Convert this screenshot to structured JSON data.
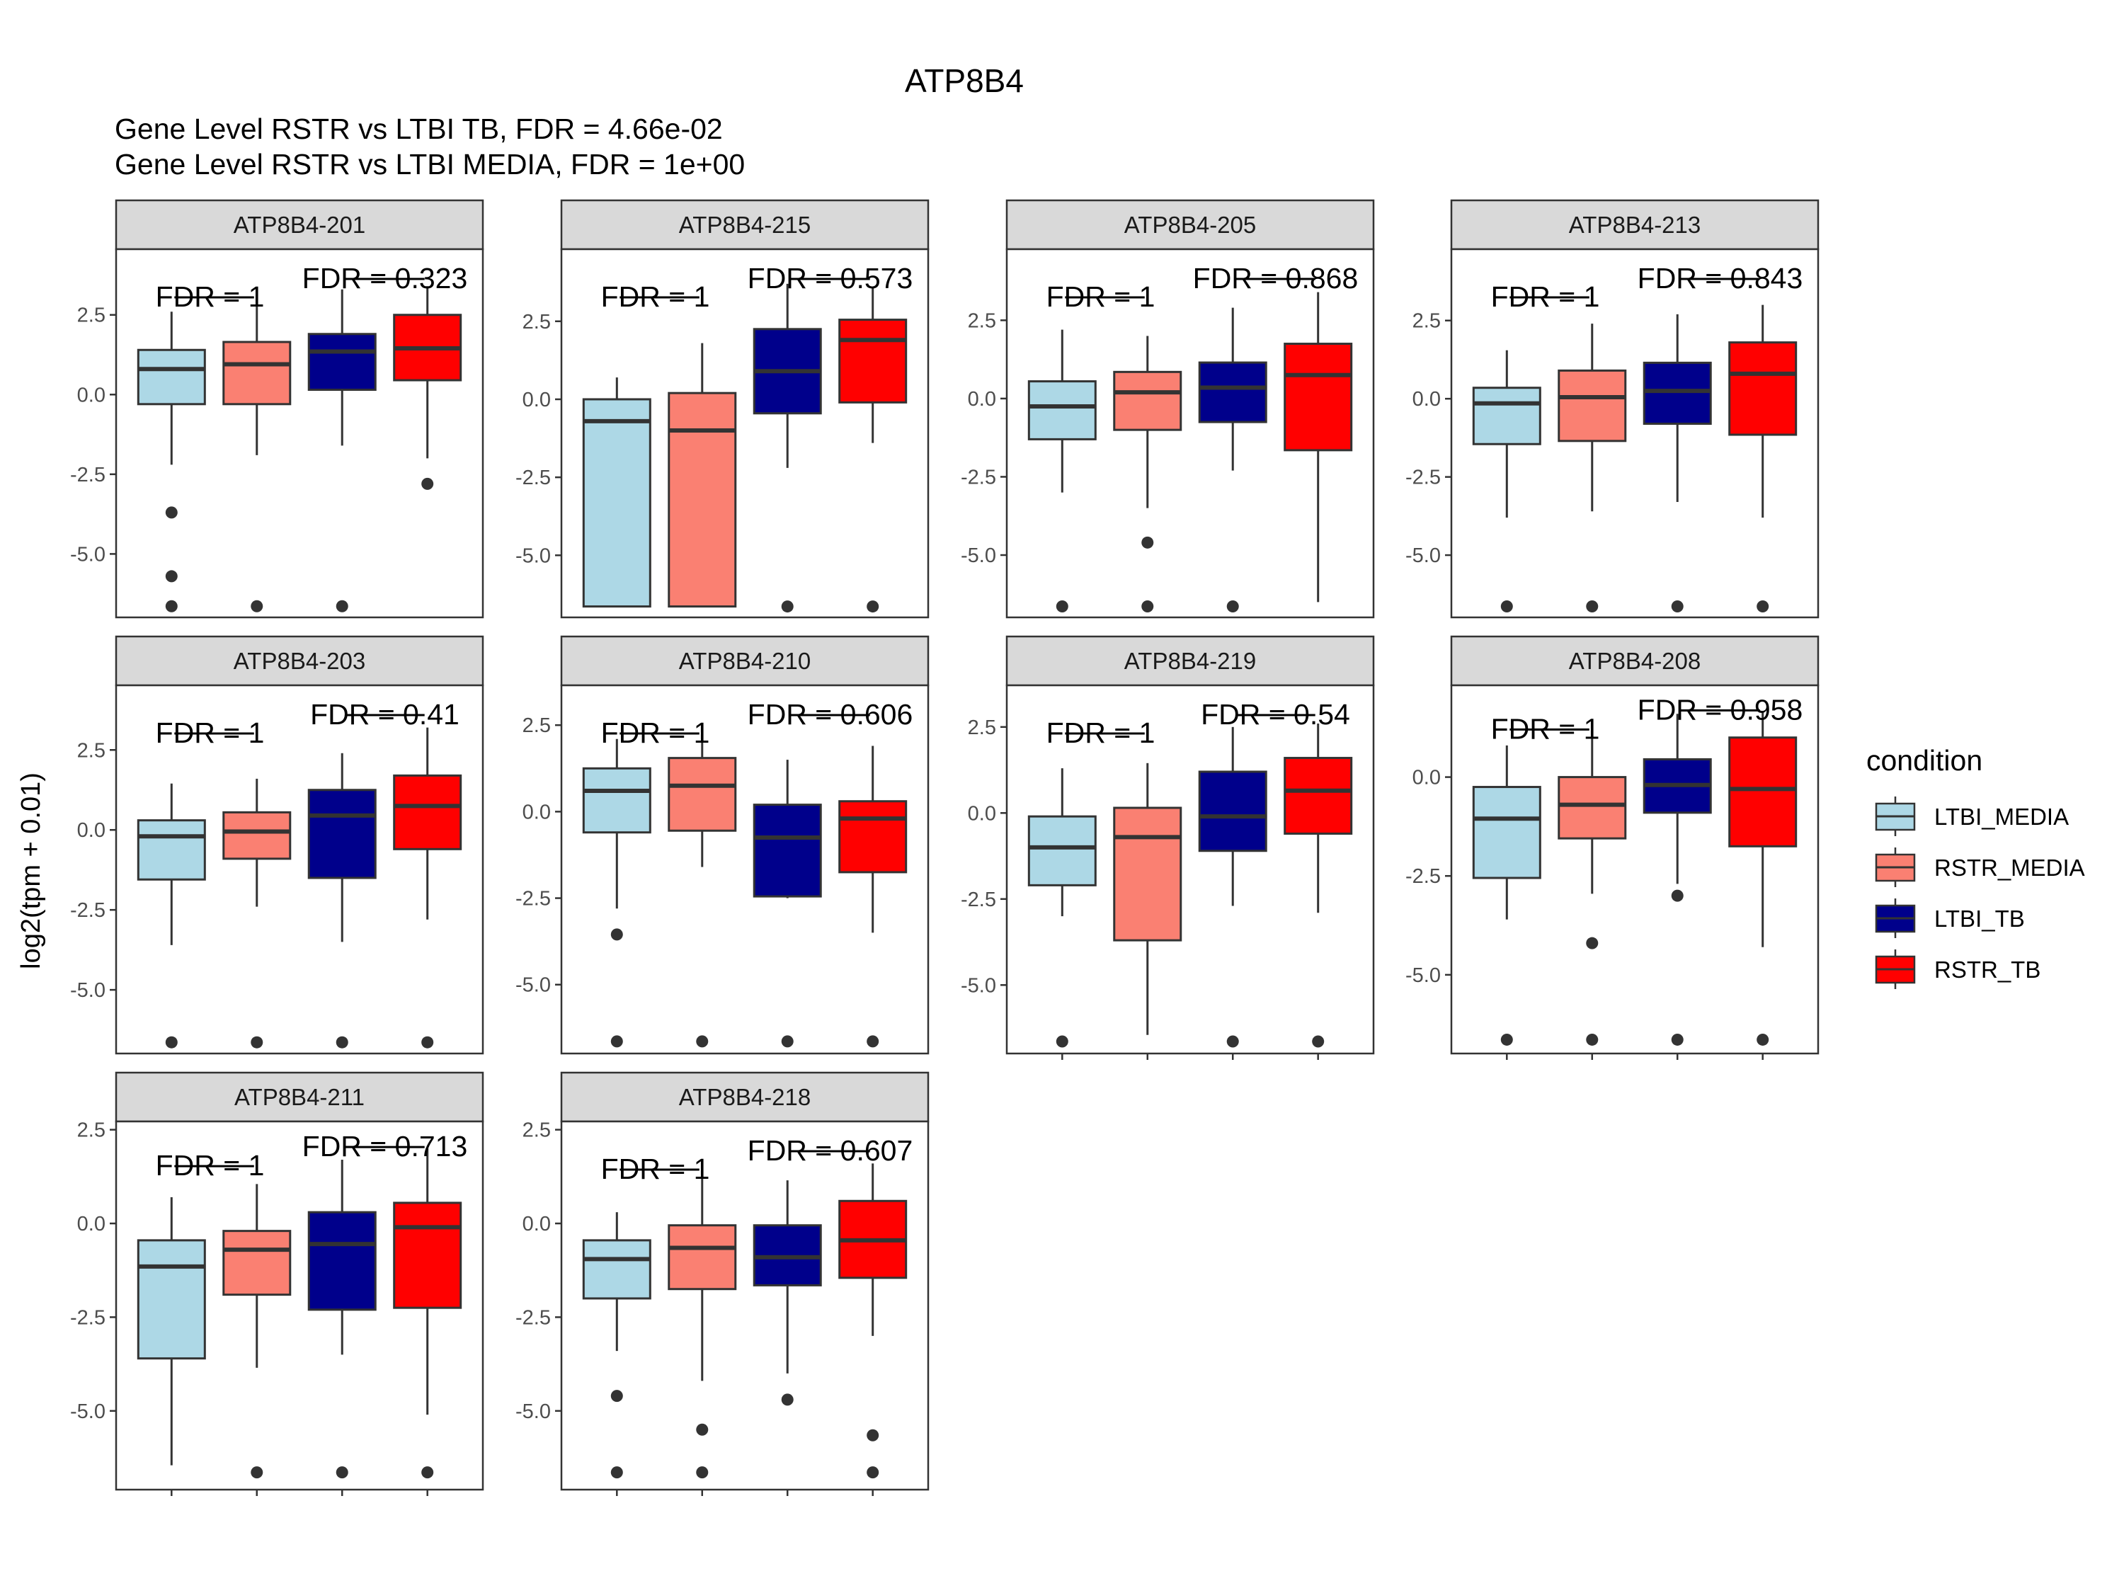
{
  "chart_data": {
    "type": "box",
    "title": "ATP8B4",
    "subtitles": [
      "Gene Level RSTR vs LTBI TB, FDR =  4.66e-02",
      "Gene Level RSTR vs LTBI MEDIA, FDR =  1e+00"
    ],
    "ylabel": "log2(tpm + 0.01)",
    "xlabel": "",
    "grid": false,
    "legend": {
      "title": "condition",
      "position": "right",
      "items": [
        {
          "label": "LTBI_MEDIA",
          "color": "#ADD8E6"
        },
        {
          "label": "RSTR_MEDIA",
          "color": "#FA8072"
        },
        {
          "label": "LTBI_TB",
          "color": "#00008B"
        },
        {
          "label": "RSTR_TB",
          "color": "#FF0000"
        }
      ]
    },
    "box_outline_color": "#333333",
    "panels": [
      {
        "name": "ATP8B4-201",
        "ylim": [
          -6.99,
          4.56
        ],
        "yticks": [
          2.5,
          0.0,
          -2.5,
          -5.0
        ],
        "tick_labels": [
          "2.5",
          "0.0",
          "-2.5",
          "-5.0"
        ],
        "fdr_media": "FDR =  1",
        "fdr_tb": "FDR =  0.323",
        "boxes": [
          {
            "lw": -2.2,
            "q1": -0.3,
            "median": 0.8,
            "q3": 1.4,
            "uw": 2.6,
            "outliers": [
              -3.7,
              -5.7,
              -6.64
            ]
          },
          {
            "lw": -1.9,
            "q1": -0.3,
            "median": 0.95,
            "q3": 1.65,
            "uw": 2.9,
            "outliers": [
              -6.64
            ]
          },
          {
            "lw": -1.6,
            "q1": 0.15,
            "median": 1.35,
            "q3": 1.9,
            "uw": 3.3,
            "outliers": [
              -6.64
            ]
          },
          {
            "lw": -2.0,
            "q1": 0.45,
            "median": 1.45,
            "q3": 2.5,
            "uw": 3.4,
            "outliers": [
              -2.8
            ]
          }
        ]
      },
      {
        "name": "ATP8B4-215",
        "ylim": [
          -6.99,
          4.81
        ],
        "yticks": [
          2.5,
          0.0,
          -2.5,
          -5.0
        ],
        "tick_labels": [
          "2.5",
          "0.0",
          "-2.5",
          "-5.0"
        ],
        "fdr_media": "FDR =  1",
        "fdr_tb": "FDR =  0.573",
        "boxes": [
          {
            "lw": -6.64,
            "q1": -6.64,
            "median": -0.7,
            "q3": 0.0,
            "uw": 0.7,
            "outliers": []
          },
          {
            "lw": -6.64,
            "q1": -6.64,
            "median": -1.0,
            "q3": 0.2,
            "uw": 1.8,
            "outliers": []
          },
          {
            "lw": -2.2,
            "q1": -0.45,
            "median": 0.9,
            "q3": 2.25,
            "uw": 3.7,
            "outliers": [
              -6.64
            ]
          },
          {
            "lw": -1.4,
            "q1": -0.1,
            "median": 1.9,
            "q3": 2.55,
            "uw": 3.6,
            "outliers": [
              -6.64
            ]
          }
        ]
      },
      {
        "name": "ATP8B4-205",
        "ylim": [
          -6.99,
          4.77
        ],
        "yticks": [
          2.5,
          0.0,
          -2.5,
          -5.0
        ],
        "tick_labels": [
          "2.5",
          "0.0",
          "-2.5",
          "-5.0"
        ],
        "fdr_media": "FDR =  1",
        "fdr_tb": "FDR =  0.868",
        "boxes": [
          {
            "lw": -3.0,
            "q1": -1.3,
            "median": -0.25,
            "q3": 0.55,
            "uw": 2.2,
            "outliers": [
              -6.64
            ]
          },
          {
            "lw": -3.5,
            "q1": -1.0,
            "median": 0.2,
            "q3": 0.85,
            "uw": 2.0,
            "outliers": [
              -4.6,
              -6.64
            ]
          },
          {
            "lw": -2.3,
            "q1": -0.75,
            "median": 0.35,
            "q3": 1.15,
            "uw": 2.9,
            "outliers": [
              -6.64
            ]
          },
          {
            "lw": -6.5,
            "q1": -1.65,
            "median": 0.75,
            "q3": 1.75,
            "uw": 3.4,
            "outliers": []
          }
        ]
      },
      {
        "name": "ATP8B4-213",
        "ylim": [
          -6.99,
          4.78
        ],
        "yticks": [
          2.5,
          0.0,
          -2.5,
          -5.0
        ],
        "tick_labels": [
          "2.5",
          "0.0",
          "-2.5",
          "-5.0"
        ],
        "fdr_media": "FDR =  1",
        "fdr_tb": "FDR =  0.843",
        "boxes": [
          {
            "lw": -3.8,
            "q1": -1.45,
            "median": -0.15,
            "q3": 0.35,
            "uw": 1.55,
            "outliers": [
              -6.64
            ]
          },
          {
            "lw": -3.6,
            "q1": -1.35,
            "median": 0.05,
            "q3": 0.9,
            "uw": 2.4,
            "outliers": [
              -6.64
            ]
          },
          {
            "lw": -3.3,
            "q1": -0.8,
            "median": 0.25,
            "q3": 1.15,
            "uw": 2.7,
            "outliers": [
              -6.64
            ]
          },
          {
            "lw": -3.8,
            "q1": -1.15,
            "median": 0.8,
            "q3": 1.8,
            "uw": 3.0,
            "outliers": [
              -6.64
            ]
          }
        ]
      },
      {
        "name": "ATP8B4-203",
        "ylim": [
          -6.99,
          4.52
        ],
        "yticks": [
          2.5,
          0.0,
          -2.5,
          -5.0
        ],
        "tick_labels": [
          "2.5",
          "0.0",
          "-2.5",
          "-5.0"
        ],
        "fdr_media": "FDR =  1",
        "fdr_tb": "FDR =  0.41",
        "boxes": [
          {
            "lw": -3.6,
            "q1": -1.55,
            "median": -0.2,
            "q3": 0.3,
            "uw": 1.45,
            "outliers": [
              -6.64
            ]
          },
          {
            "lw": -2.4,
            "q1": -0.9,
            "median": -0.05,
            "q3": 0.55,
            "uw": 1.6,
            "outliers": [
              -6.64
            ]
          },
          {
            "lw": -3.5,
            "q1": -1.5,
            "median": 0.45,
            "q3": 1.25,
            "uw": 2.4,
            "outliers": [
              -6.64
            ]
          },
          {
            "lw": -2.8,
            "q1": -0.6,
            "median": 0.75,
            "q3": 1.7,
            "uw": 3.2,
            "outliers": [
              -6.64
            ]
          }
        ]
      },
      {
        "name": "ATP8B4-210",
        "ylim": [
          -6.99,
          3.65
        ],
        "yticks": [
          2.5,
          0.0,
          -2.5,
          -5.0
        ],
        "tick_labels": [
          "2.5",
          "0.0",
          "-2.5",
          "-5.0"
        ],
        "fdr_media": "FDR =  1",
        "fdr_tb": "FDR =  0.606",
        "boxes": [
          {
            "lw": -2.8,
            "q1": -0.6,
            "median": 0.6,
            "q3": 1.25,
            "uw": 2.1,
            "outliers": [
              -3.55,
              -6.64
            ]
          },
          {
            "lw": -1.6,
            "q1": -0.55,
            "median": 0.75,
            "q3": 1.55,
            "uw": 2.5,
            "outliers": [
              -6.64
            ]
          },
          {
            "lw": -2.5,
            "q1": -2.45,
            "median": -0.75,
            "q3": 0.2,
            "uw": 1.5,
            "outliers": [
              -6.64
            ]
          },
          {
            "lw": -3.5,
            "q1": -1.75,
            "median": -0.2,
            "q3": 0.3,
            "uw": 1.9,
            "outliers": [
              -6.64
            ]
          }
        ]
      },
      {
        "name": "ATP8B4-219",
        "ylim": [
          -6.99,
          3.71
        ],
        "yticks": [
          2.5,
          0.0,
          -2.5,
          -5.0
        ],
        "tick_labels": [
          "2.5",
          "0.0",
          "-2.5",
          "-5.0"
        ],
        "fdr_media": "FDR =  1",
        "fdr_tb": "FDR =  0.54",
        "boxes": [
          {
            "lw": -3.0,
            "q1": -2.1,
            "median": -1.0,
            "q3": -0.1,
            "uw": 1.3,
            "outliers": [
              -6.64
            ]
          },
          {
            "lw": -6.45,
            "q1": -3.7,
            "median": -0.7,
            "q3": 0.15,
            "uw": 1.45,
            "outliers": []
          },
          {
            "lw": -2.7,
            "q1": -1.1,
            "median": -0.1,
            "q3": 1.2,
            "uw": 2.5,
            "outliers": [
              -6.64
            ]
          },
          {
            "lw": -2.9,
            "q1": -0.6,
            "median": 0.65,
            "q3": 1.6,
            "uw": 2.6,
            "outliers": [
              -6.64
            ]
          }
        ]
      },
      {
        "name": "ATP8B4-208",
        "ylim": [
          -6.99,
          2.32
        ],
        "yticks": [
          0.0,
          -2.5,
          -5.0
        ],
        "tick_labels": [
          "0.0",
          "-2.5",
          "-5.0"
        ],
        "fdr_media": "FDR =  1",
        "fdr_tb": "FDR =  0.958",
        "boxes": [
          {
            "lw": -3.6,
            "q1": -2.55,
            "median": -1.05,
            "q3": -0.25,
            "uw": 0.8,
            "outliers": [
              -6.64
            ]
          },
          {
            "lw": -2.95,
            "q1": -1.55,
            "median": -0.7,
            "q3": 0.0,
            "uw": 1.2,
            "outliers": [
              -4.2,
              -6.64
            ]
          },
          {
            "lw": -2.7,
            "q1": -0.9,
            "median": -0.2,
            "q3": 0.45,
            "uw": 1.6,
            "outliers": [
              -3.0,
              -6.64
            ]
          },
          {
            "lw": -4.3,
            "q1": -1.75,
            "median": -0.3,
            "q3": 1.0,
            "uw": 1.65,
            "outliers": [
              -6.64
            ]
          }
        ]
      },
      {
        "name": "ATP8B4-211",
        "ylim": [
          -7.1,
          2.72
        ],
        "yticks": [
          2.5,
          0.0,
          -2.5,
          -5.0
        ],
        "tick_labels": [
          "2.5",
          "0.0",
          "-2.5",
          "-5.0"
        ],
        "fdr_media": "FDR =  1",
        "fdr_tb": "FDR =  0.713",
        "boxes": [
          {
            "lw": -6.45,
            "q1": -3.6,
            "median": -1.15,
            "q3": -0.45,
            "uw": 0.7,
            "outliers": []
          },
          {
            "lw": -3.85,
            "q1": -1.9,
            "median": -0.7,
            "q3": -0.2,
            "uw": 1.05,
            "outliers": [
              -6.64
            ]
          },
          {
            "lw": -3.5,
            "q1": -2.3,
            "median": -0.55,
            "q3": 0.3,
            "uw": 1.7,
            "outliers": [
              -6.64
            ]
          },
          {
            "lw": -5.1,
            "q1": -2.25,
            "median": -0.1,
            "q3": 0.55,
            "uw": 2.0,
            "outliers": [
              -6.64
            ]
          }
        ]
      },
      {
        "name": "ATP8B4-218",
        "ylim": [
          -7.1,
          2.72
        ],
        "yticks": [
          2.5,
          0.0,
          -2.5,
          -5.0
        ],
        "tick_labels": [
          "2.5",
          "0.0",
          "-2.5",
          "-5.0"
        ],
        "fdr_media": "FDR =  1",
        "fdr_tb": "FDR =  0.607",
        "boxes": [
          {
            "lw": -3.4,
            "q1": -2.0,
            "median": -0.95,
            "q3": -0.45,
            "uw": 0.3,
            "outliers": [
              -4.6,
              -6.64
            ]
          },
          {
            "lw": -4.2,
            "q1": -1.75,
            "median": -0.65,
            "q3": -0.05,
            "uw": 1.25,
            "outliers": [
              -5.5,
              -6.64
            ]
          },
          {
            "lw": -4.0,
            "q1": -1.65,
            "median": -0.9,
            "q3": -0.05,
            "uw": 1.15,
            "outliers": [
              -4.7
            ]
          },
          {
            "lw": -3.0,
            "q1": -1.45,
            "median": -0.45,
            "q3": 0.6,
            "uw": 1.6,
            "outliers": [
              -5.65,
              -6.64
            ]
          }
        ]
      }
    ]
  }
}
